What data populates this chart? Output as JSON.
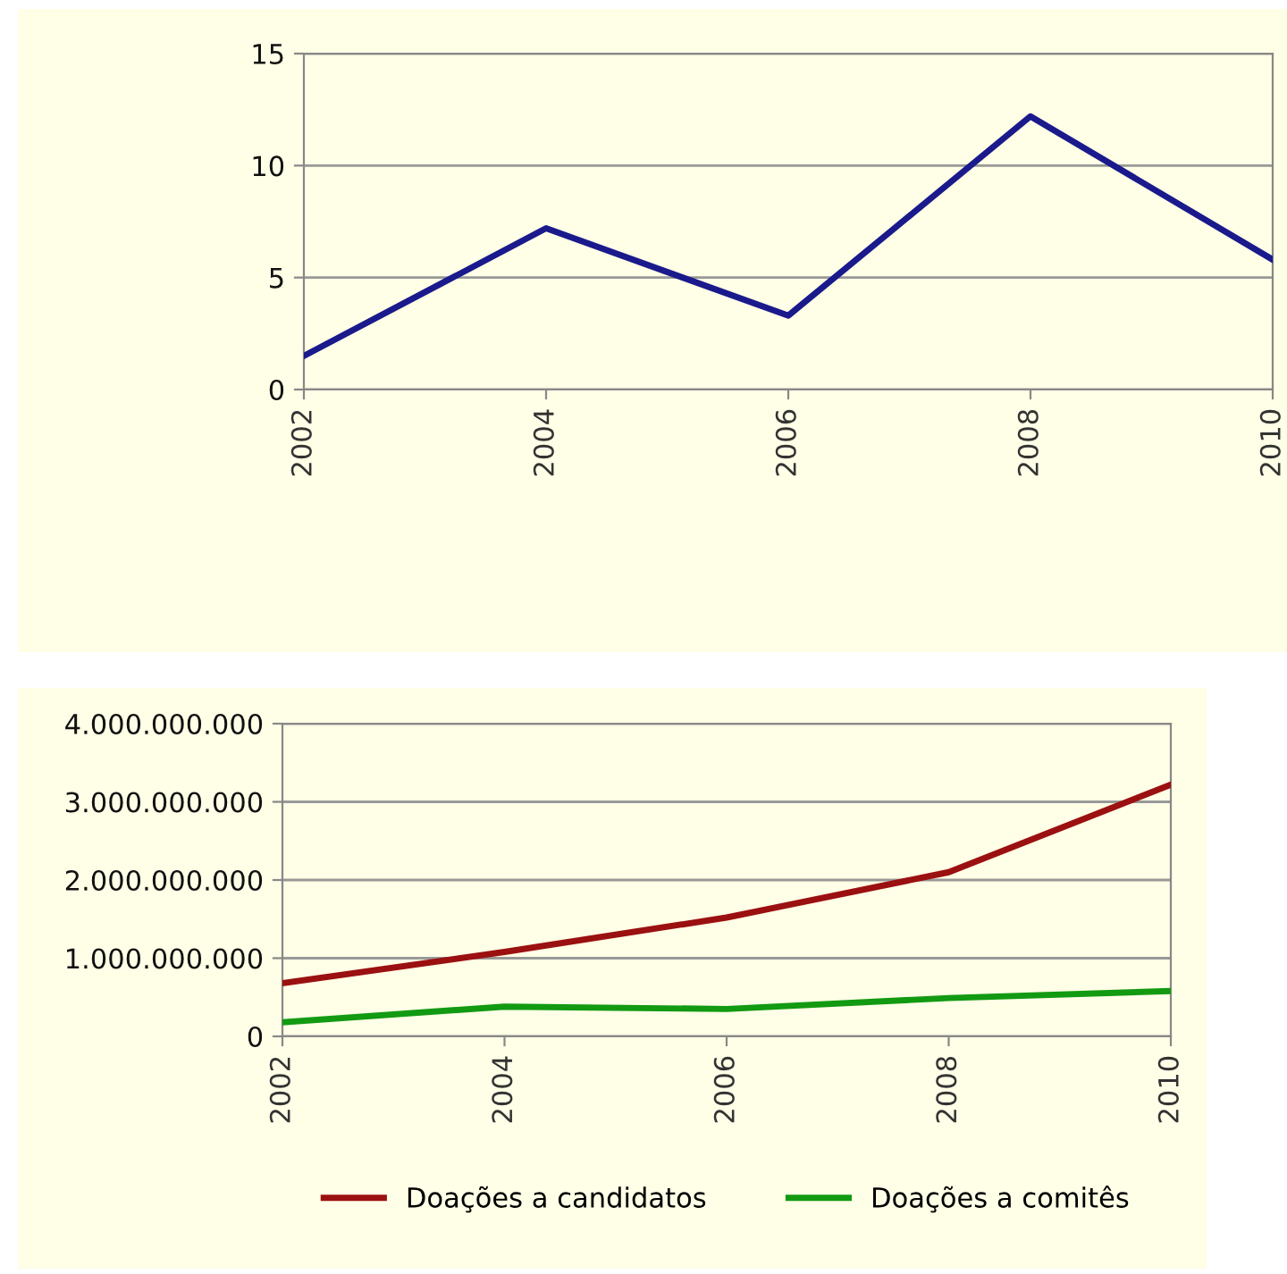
{
  "chart_data": [
    {
      "type": "line",
      "x": [
        2002,
        2004,
        2006,
        2008,
        2010
      ],
      "series": [
        {
          "color": "#1a1a8c",
          "values": [
            1.5,
            7.2,
            3.3,
            12.2,
            5.8
          ]
        }
      ],
      "xlim": [
        2002,
        2010
      ],
      "xticks": [
        2002,
        2004,
        2006,
        2008,
        2010
      ],
      "ylim": [
        0,
        15
      ],
      "yticks": [
        0,
        5,
        10,
        15
      ],
      "grid": "y",
      "legend": false,
      "marker": "none",
      "line_style": "solid"
    },
    {
      "type": "line",
      "x": [
        2002,
        2004,
        2006,
        2008,
        2010
      ],
      "series": [
        {
          "name": "Doações a candidatos",
          "color": "#9b1010",
          "values": [
            680000000,
            1080000000,
            1520000000,
            2100000000,
            3220000000
          ]
        },
        {
          "name": "Doações a comitês",
          "color": "#129a12",
          "values": [
            180000000,
            380000000,
            350000000,
            490000000,
            580000000
          ]
        }
      ],
      "xlim": [
        2002,
        2010
      ],
      "xticks": [
        2002,
        2004,
        2006,
        2008,
        2010
      ],
      "ylim": [
        0,
        4000000000
      ],
      "yticks": [
        0,
        {
          "value": 1000000000,
          "label": "1.000.000.000"
        },
        {
          "value": 2000000000,
          "label": "2.000.000.000"
        },
        {
          "value": 3000000000,
          "label": "3.000.000.000"
        },
        {
          "value": 4000000000,
          "label": "4.000.000.000"
        }
      ],
      "grid": "y",
      "legend": "bottom",
      "marker": "none",
      "line_style": "solid"
    }
  ]
}
